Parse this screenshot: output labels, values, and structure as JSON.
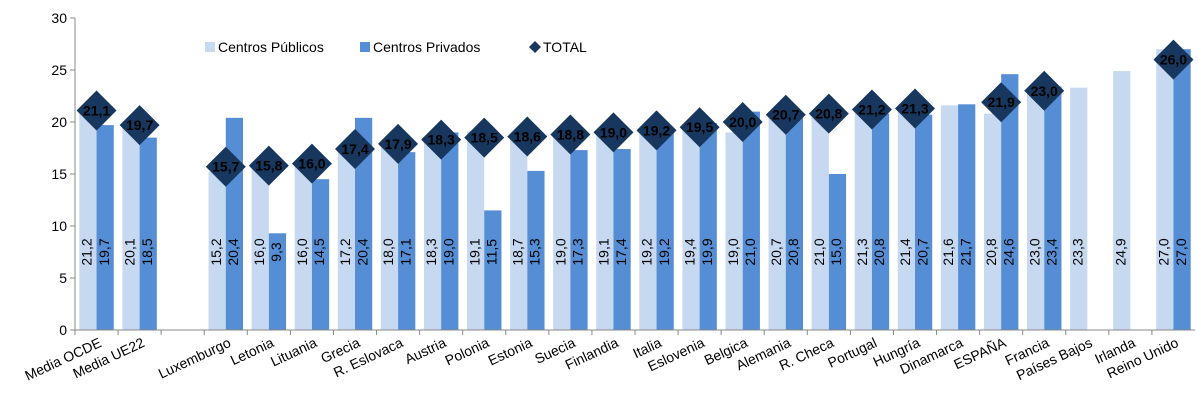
{
  "chart_data": {
    "type": "bar",
    "categories": [
      "Media OCDE",
      "Media UE22",
      null,
      "Luxemburgo",
      "Letonia",
      "Lituania",
      "Grecia",
      "R. Eslovaca",
      "Austria",
      "Polonia",
      "Estonia",
      "Suecia",
      "Finlandia",
      "Italia",
      "Eslovenia",
      "Belgica",
      "Alemania",
      "R. Checa",
      "Portugal",
      "Hungría",
      "Dinamarca",
      "ESPAÑA",
      "Francia",
      "Países Bajos",
      "Irlanda",
      "Reino Unido"
    ],
    "series": [
      {
        "name": "Centros Públicos",
        "color": "#c6d9f1",
        "label_color": "#8eaad2",
        "values": [
          21.2,
          20.1,
          null,
          15.2,
          16.0,
          16.0,
          17.2,
          18.0,
          18.3,
          19.1,
          18.7,
          19.0,
          19.1,
          19.2,
          19.4,
          19.0,
          20.7,
          21.0,
          21.3,
          21.4,
          21.6,
          20.8,
          23.0,
          23.3,
          24.9,
          27.0
        ],
        "value_labels": [
          "21,2",
          "20,1",
          null,
          "15,2",
          "16,0",
          "16,0",
          "17,2",
          "18,0",
          "18,3",
          "19,1",
          "18,7",
          "19,0",
          "19,1",
          "19,2",
          "19,4",
          "19,0",
          "20,7",
          "21,0",
          "21,3",
          "21,4",
          "21,6",
          "20,8",
          "23,0",
          "23,3",
          "24,9",
          "27,0"
        ]
      },
      {
        "name": "Centros Privados",
        "color": "#558ed5",
        "label_color": "#000000",
        "values": [
          19.7,
          18.5,
          null,
          20.4,
          9.3,
          14.5,
          20.4,
          17.1,
          19.0,
          11.5,
          15.3,
          17.3,
          17.4,
          19.2,
          19.9,
          21.0,
          20.8,
          15.0,
          20.8,
          20.7,
          21.7,
          24.6,
          23.4,
          null,
          null,
          27.0
        ],
        "value_labels": [
          "19,7",
          "18,5",
          null,
          "20,4",
          "9,3",
          "14,5",
          "20,4",
          "17,1",
          "19,0",
          "11,5",
          "15,3",
          "17,3",
          "17,4",
          "19,2",
          "19,9",
          "21,0",
          "20,8",
          "15,0",
          "20,8",
          "20,7",
          "21,7",
          "24,6",
          "23,4",
          null,
          null,
          "27,0"
        ]
      },
      {
        "name": "TOTAL",
        "color": "#17375e",
        "marker": "diamond",
        "values": [
          21.1,
          19.7,
          null,
          15.7,
          15.8,
          16.0,
          17.4,
          17.9,
          18.3,
          18.5,
          18.6,
          18.8,
          19.0,
          19.2,
          19.5,
          20.0,
          20.7,
          20.8,
          21.2,
          21.3,
          null,
          21.9,
          23.0,
          null,
          null,
          26.0
        ],
        "value_labels": [
          "21,1",
          "19,7",
          null,
          "15,7",
          "15,8",
          "16,0",
          "17,4",
          "17,9",
          "18,3",
          "18,5",
          "18,6",
          "18,8",
          "19,0",
          "19,2",
          "19,5",
          "20,0",
          "20,7",
          "20,8",
          "21,2",
          "21,3",
          null,
          "21,9",
          "23,0",
          null,
          null,
          "26,0"
        ]
      }
    ],
    "ylim": [
      0,
      30
    ],
    "yticks": [
      0,
      5,
      10,
      15,
      20,
      25,
      30
    ],
    "legend": "top-left"
  }
}
